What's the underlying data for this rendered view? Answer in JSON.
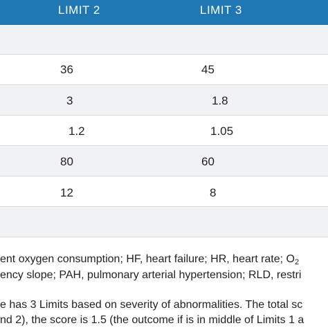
{
  "header": {
    "col_limit2": "LIMIT 2",
    "col_limit3": "LIMIT 3"
  },
  "rows": [
    {
      "limit2": "36",
      "limit3": "45"
    },
    {
      "limit2": "3",
      "limit3": "1.8"
    },
    {
      "limit2": "1.2",
      "limit3": "1.05"
    },
    {
      "limit2": "80",
      "limit3": "60"
    },
    {
      "limit2": "12",
      "limit3": "8"
    }
  ],
  "footnotes": {
    "line1": "ent oxygen consumption; HF, heart failure; HR, heart rate; O",
    "line1_sub": "2",
    "line2": "ency slope; PAH, pulmonary arterial hypertension; RLD, restri",
    "line3": "e has 3 Limits based on severity of abnormalities. The total sc",
    "line4": "nd 2), the score is 1.5 (the outcome if is in middle of Limits 1 a"
  },
  "colors": {
    "header_bg": "#1f78b4",
    "band": "#f1f2f4",
    "rule": "#d6d9de"
  }
}
